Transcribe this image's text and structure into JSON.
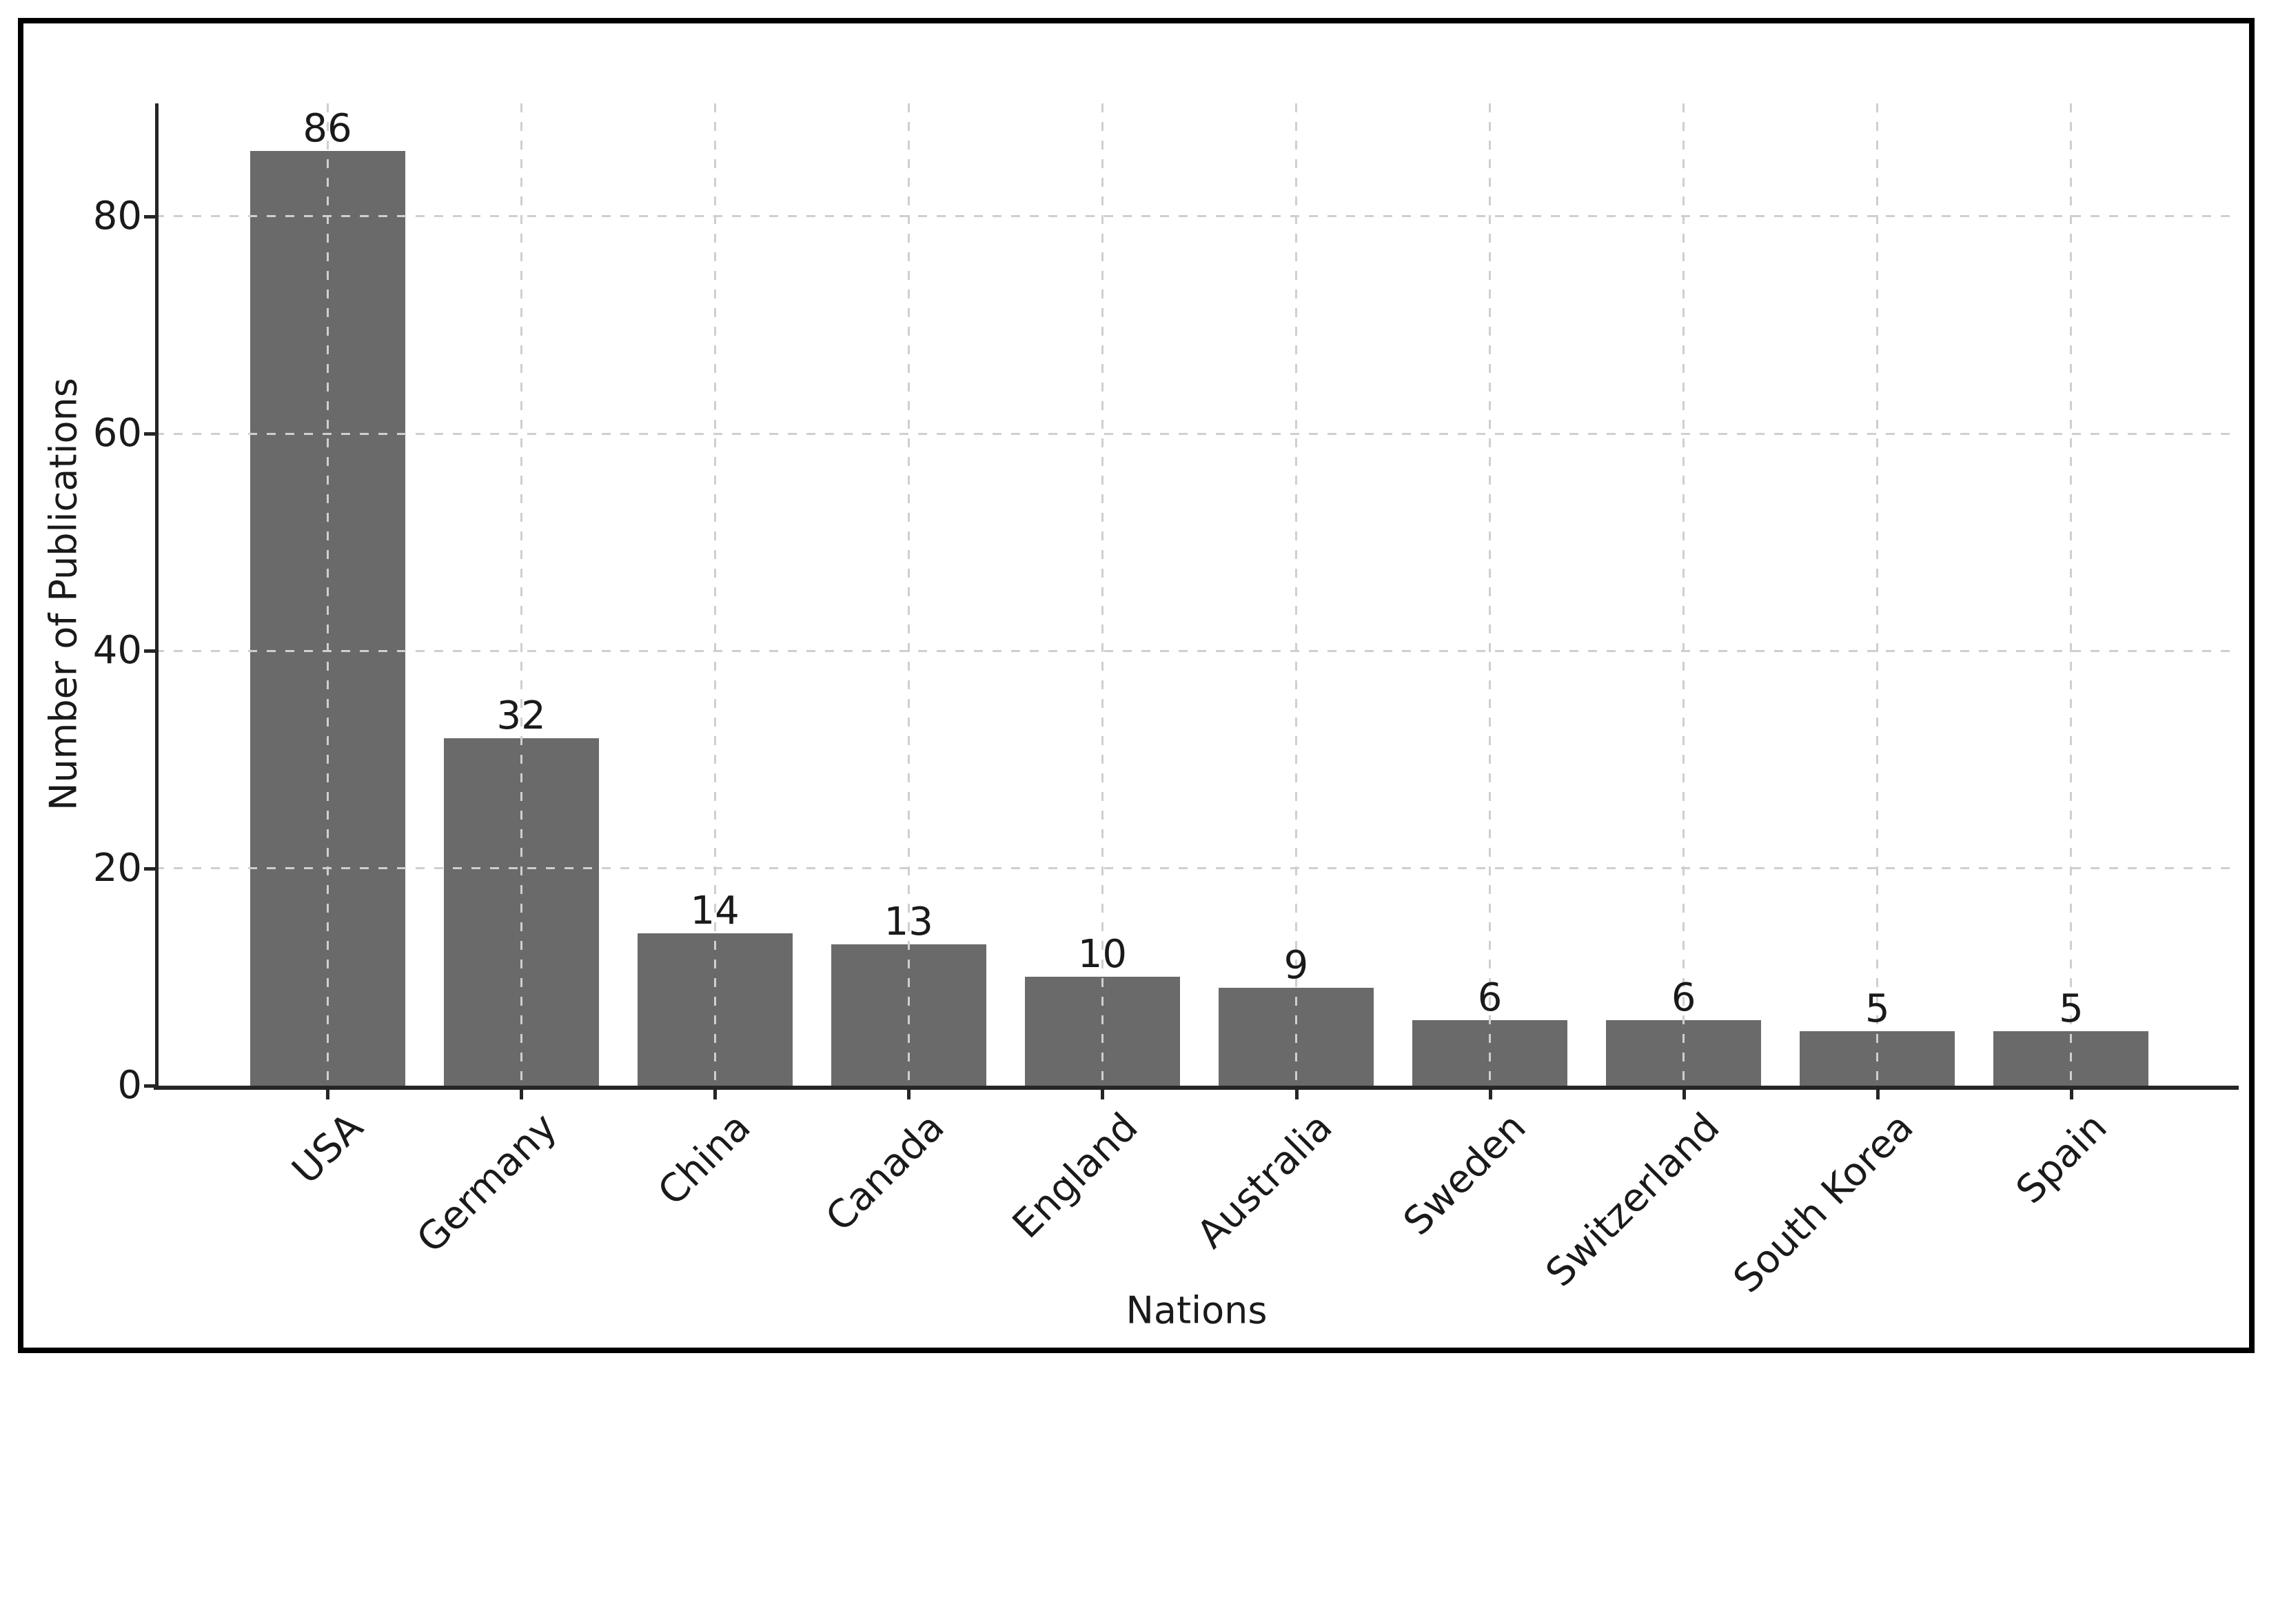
{
  "figure": {
    "background_color": "#ffffff",
    "border_color": "#000000",
    "title": ""
  },
  "chart_data": {
    "type": "bar",
    "categories": [
      "USA",
      "Germany",
      "China",
      "Canada",
      "England",
      "Australia",
      "Sweden",
      "Switzerland",
      "South Korea",
      "Spain"
    ],
    "values": [
      86,
      32,
      14,
      13,
      10,
      9,
      6,
      6,
      5,
      5
    ],
    "title": "",
    "xlabel": "Nations",
    "ylabel": "Number of Publications",
    "ylim": [
      0,
      90.4
    ],
    "yticks": [
      0,
      20,
      40,
      60,
      80
    ],
    "grid": "on",
    "grid_style": "dashed, horizontal and vertical",
    "legend": "none",
    "bar_value_labels_shown": true,
    "x_tick_rotation_deg": 45,
    "bar_color": "#6a6a6a",
    "grid_color": "#cfcfcf",
    "axis_color": "#262626",
    "text_color": "#1a1a1a"
  }
}
